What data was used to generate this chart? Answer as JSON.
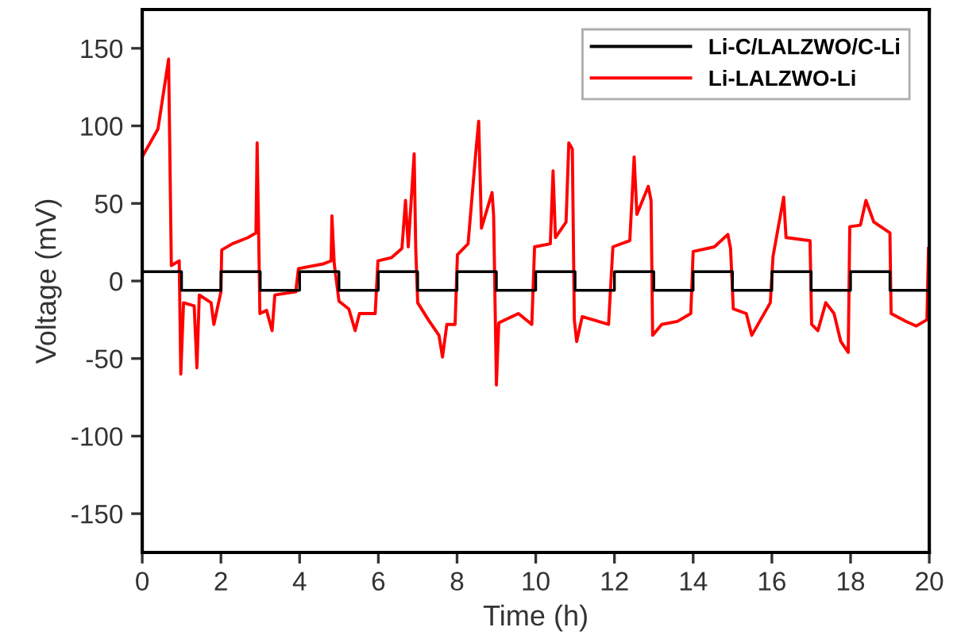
{
  "chart_data": {
    "type": "line",
    "xlabel": "Time (h)",
    "ylabel": "Voltage (mV)",
    "xlim": [
      0,
      20
    ],
    "ylim": [
      -175,
      175
    ],
    "xticks": [
      0,
      2,
      4,
      6,
      8,
      10,
      12,
      14,
      16,
      18,
      20
    ],
    "yticks": [
      -150,
      -100,
      -50,
      0,
      50,
      100,
      150
    ],
    "grid": false,
    "legend": "top right",
    "line_style": "solid",
    "marker": "none",
    "series": [
      {
        "name": "Li-C/LALZWO/C-Li",
        "type": "step",
        "color": "#000000",
        "x": [
          0,
          1,
          2,
          3,
          4,
          5,
          6,
          7,
          8,
          9,
          10,
          11,
          12,
          13,
          14,
          15,
          16,
          17,
          18,
          19,
          20
        ],
        "values": [
          6,
          -6,
          6,
          -6,
          6,
          -6,
          6,
          -6,
          6,
          -6,
          6,
          -6,
          6,
          -6,
          6,
          -6,
          6,
          -6,
          6,
          -6,
          -6
        ]
      },
      {
        "name": "Li-LALZWO-Li",
        "color": "#ff0000",
        "x": [
          0.0,
          0.4,
          0.67,
          0.74,
          0.94,
          0.98,
          1.05,
          1.32,
          1.39,
          1.45,
          1.75,
          1.82,
          2.0,
          2.02,
          2.29,
          2.69,
          2.89,
          2.92,
          2.96,
          2.99,
          3.16,
          3.3,
          3.37,
          3.9,
          3.97,
          4.6,
          4.8,
          4.82,
          4.88,
          5.0,
          5.25,
          5.41,
          5.52,
          5.92,
          5.99,
          6.33,
          6.6,
          6.69,
          6.76,
          6.91,
          6.95,
          7.0,
          7.27,
          7.54,
          7.63,
          7.74,
          7.95,
          8.01,
          8.28,
          8.48,
          8.55,
          8.62,
          8.89,
          8.93,
          9.0,
          9.06,
          9.56,
          9.9,
          9.97,
          10.37,
          10.44,
          10.5,
          10.77,
          10.84,
          10.93,
          10.98,
          11.04,
          11.18,
          11.85,
          11.96,
          12.39,
          12.5,
          12.57,
          12.86,
          12.93,
          12.97,
          13.2,
          13.6,
          13.94,
          14.0,
          14.54,
          14.88,
          14.95,
          15.02,
          15.35,
          15.49,
          15.96,
          16.03,
          16.3,
          16.36,
          16.97,
          17.01,
          17.17,
          17.37,
          17.58,
          17.75,
          17.94,
          17.98,
          18.25,
          18.39,
          18.59,
          19.0,
          19.03,
          19.4,
          19.67,
          19.94,
          19.98
        ],
        "values": [
          80,
          98,
          143,
          10,
          13,
          -60,
          -14,
          -16,
          -56,
          -9,
          -14,
          -28,
          -7,
          20,
          24,
          28,
          31,
          89,
          28,
          -21,
          -19,
          -32,
          -9,
          -7,
          8,
          11,
          13,
          42,
          11,
          -13,
          -18,
          -32,
          -21,
          -21,
          13,
          15,
          21,
          52,
          22,
          82,
          21,
          -14,
          -25,
          -35,
          -49,
          -28,
          -28,
          17,
          24,
          84,
          103,
          34,
          57,
          42,
          -67,
          -27,
          -21,
          -28,
          22,
          24,
          71,
          28,
          38,
          89,
          85,
          -25,
          -39,
          -23,
          -28,
          22,
          26,
          80,
          43,
          61,
          52,
          -35,
          -28,
          -26,
          -21,
          19,
          22,
          30,
          21,
          -18,
          -21,
          -35,
          -14,
          16,
          54,
          28,
          26,
          -28,
          -32,
          -14,
          -21,
          -39,
          -46,
          35,
          36,
          52,
          38,
          31,
          -21,
          -26,
          -29,
          -25,
          21
        ]
      }
    ]
  }
}
